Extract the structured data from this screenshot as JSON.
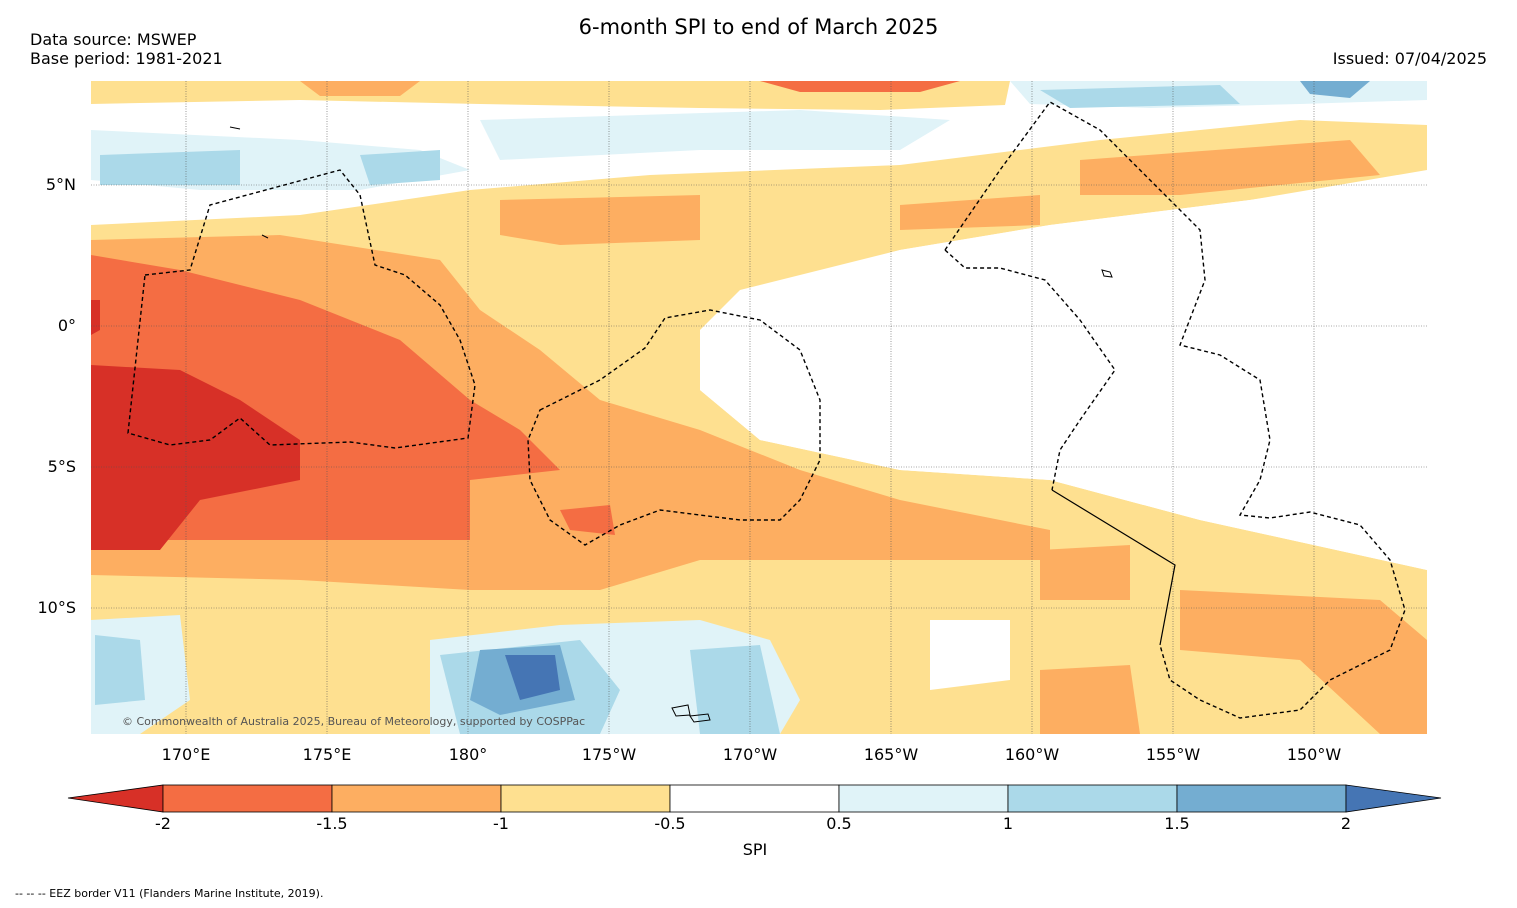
{
  "header": {
    "title": "6-month SPI to end of March 2025",
    "data_source": "Data source: MSWEP",
    "base_period": "Base period: 1981-2021",
    "issued": "Issued: 07/04/2025"
  },
  "map": {
    "lat_labels": [
      "5°N",
      "0°",
      "5°S",
      "10°S"
    ],
    "lon_labels": [
      "170°E",
      "175°E",
      "180°",
      "175°W",
      "170°W",
      "165°W",
      "160°W",
      "155°W",
      "150°W"
    ],
    "copyright": "© Commonwealth of Australia 2025, Bureau of Meteorology, supported by COSPPac",
    "footnote": "--  --  -- EEZ border V11 (Flanders Marine Institute, 2019)."
  },
  "colorbar": {
    "label": "SPI",
    "ticks": [
      "-2",
      "-1.5",
      "-1",
      "-0.5",
      "0.5",
      "1",
      "1.5",
      "2"
    ],
    "colors": [
      "#d73027",
      "#f46d43",
      "#fdae61",
      "#fee090",
      "#ffffff",
      "#e0f3f8",
      "#abd9e9",
      "#74add1",
      "#4575b4"
    ]
  }
}
